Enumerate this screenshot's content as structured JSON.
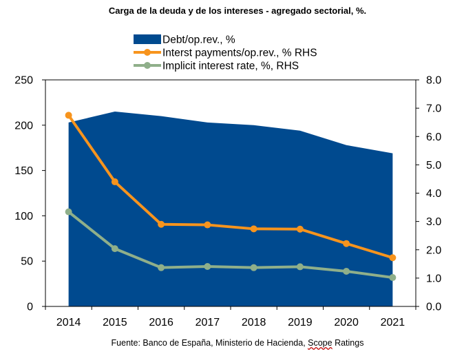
{
  "chart_data": {
    "type": "area+line",
    "title": "Carga de la deuda y de los intereses - agregado sectorial, %.",
    "source": {
      "prefix": "Fuente: Banco de España, Ministerio de Hacienda, ",
      "underlined": "Scope",
      "suffix": " Ratings"
    },
    "categories": [
      "2014",
      "2015",
      "2016",
      "2017",
      "2018",
      "2019",
      "2020",
      "2021"
    ],
    "left_axis": {
      "ylim": [
        0,
        250
      ],
      "ticks": [
        "0",
        "50",
        "100",
        "150",
        "200",
        "250"
      ],
      "tick_values": [
        0,
        50,
        100,
        150,
        200,
        250
      ]
    },
    "right_axis": {
      "ylim": [
        0,
        8
      ],
      "ticks": [
        "0.0",
        "1.0",
        "2.0",
        "3.0",
        "4.0",
        "5.0",
        "6.0",
        "7.0",
        "8.0"
      ],
      "tick_values": [
        0,
        1,
        2,
        3,
        4,
        5,
        6,
        7,
        8
      ]
    },
    "series": [
      {
        "name": "Debt/op.rev., %",
        "kind": "area",
        "axis": "left",
        "color": "#004a8f",
        "values": [
          203,
          215,
          210,
          203,
          200,
          194,
          178,
          169
        ]
      },
      {
        "name": "Interst payments/op.rev., % RHS",
        "kind": "line",
        "axis": "right",
        "color": "#f7941d",
        "values": [
          6.75,
          4.4,
          2.9,
          2.88,
          2.74,
          2.73,
          2.22,
          1.72
        ]
      },
      {
        "name": "Implicit interest rate, %, RHS",
        "kind": "line",
        "axis": "right",
        "color": "#8faf8a",
        "values": [
          3.34,
          2.04,
          1.37,
          1.41,
          1.37,
          1.4,
          1.24,
          1.02
        ]
      }
    ],
    "legend_position": "top"
  }
}
